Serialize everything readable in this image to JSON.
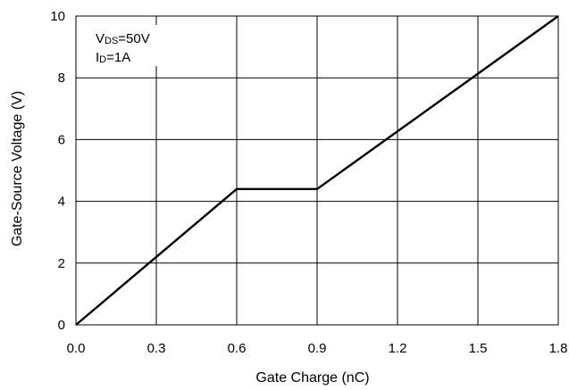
{
  "chart_data": {
    "type": "line",
    "xlabel": "Gate Charge (nC)",
    "ylabel": "Gate-Source Voltage (V)",
    "xlim": [
      0,
      1.8
    ],
    "ylim": [
      0,
      10
    ],
    "x_ticks": [
      0.0,
      0.3,
      0.6,
      0.9,
      1.2,
      1.5,
      1.8
    ],
    "x_tick_labels": [
      "0.0",
      "0.3",
      "0.6",
      "0.9",
      "1.2",
      "1.5",
      "1.8"
    ],
    "y_ticks": [
      0,
      2,
      4,
      6,
      8,
      10
    ],
    "y_tick_labels": [
      "0",
      "2",
      "4",
      "6",
      "8",
      "10"
    ],
    "grid": true,
    "series": [
      {
        "x": [
          0.0,
          0.6,
          0.9,
          1.8
        ],
        "y": [
          0.0,
          4.4,
          4.4,
          10.0
        ]
      }
    ],
    "annotations": {
      "line1": {
        "main": "V",
        "sub": "DS",
        "rest": "=50V"
      },
      "line2": {
        "main": "I",
        "sub": "D",
        "rest": "=1A"
      }
    },
    "colors": {
      "line": "#000000",
      "grid": "#000000",
      "frame": "#000000"
    }
  }
}
